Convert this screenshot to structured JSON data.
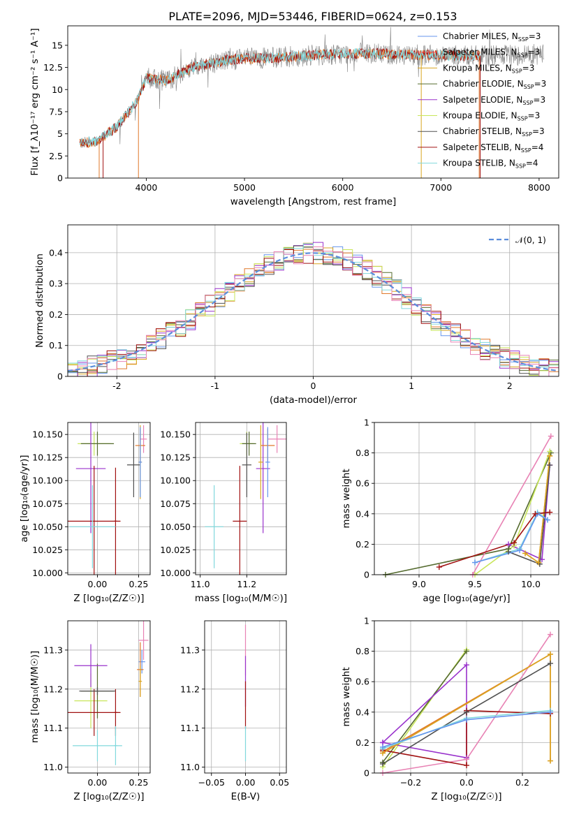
{
  "figure_title": "PLATE=2096, MJD=53446, FIBERID=0624, z=0.153",
  "colors": {
    "Chabrier MILES": "#6495ed",
    "Salpeter MILES": "#ff4c4c",
    "Kroupa MILES": "#daa520",
    "Chabrier ELODIE": "#556b2f",
    "Salpeter ELODIE": "#9932cc",
    "Kroupa ELODIE": "#c8e65a",
    "Chabrier STELIB": "#505050",
    "Salpeter STELIB": "#a01010",
    "Kroupa STELIB": "#80d8dc",
    "pink": "#e882b4",
    "orange": "#e0782a",
    "gray": "#808080",
    "gauss": "#5b8ddb"
  },
  "chart_data": [
    {
      "id": "spectrum",
      "type": "line",
      "title": "PLATE=2096, MJD=53446, FIBERID=0624, z=0.153",
      "xlabel": "wavelength [Angstrom, rest frame]",
      "ylabel": "Flux [f_λ10⁻¹⁷ erg cm⁻² s⁻¹ A⁻¹]",
      "xlim": [
        3200,
        8200
      ],
      "ylim": [
        0,
        17.2
      ],
      "xticks": [
        4000,
        5000,
        6000,
        7000,
        8000
      ],
      "yticks": [
        0.0,
        2.5,
        5.0,
        7.5,
        10.0,
        12.5,
        15.0
      ],
      "legend": "top-right",
      "legend_entries": [
        "Chabrier MILES, N_SSP=3",
        "Salpeter MILES, N_SSP=3",
        "Kroupa MILES, N_SSP=3",
        "Chabrier ELODIE, N_SSP=3",
        "Salpeter ELODIE, N_SSP=3",
        "Kroupa ELODIE, N_SSP=3",
        "Chabrier STELIB, N_SSP=3",
        "Salpeter STELIB, N_SSP=4",
        "Kroupa STELIB, N_SSP=4"
      ],
      "continuum": {
        "x": [
          3320,
          3500,
          3700,
          3900,
          4000,
          4200,
          4500,
          4800,
          5000,
          5300,
          5600,
          5900,
          6200,
          6500,
          6800,
          7000,
          7200,
          7500,
          7800,
          8000
        ],
        "y": [
          3.9,
          4.2,
          5.8,
          8.6,
          11.3,
          11.0,
          12.6,
          13.3,
          13.5,
          13.6,
          13.8,
          14.0,
          14.1,
          14.0,
          13.9,
          13.9,
          13.8,
          13.8,
          13.9,
          14.0
        ]
      }
    },
    {
      "id": "residuals",
      "type": "line",
      "xlabel": "(data-model)/error",
      "ylabel": "Normed distribution",
      "xlim": [
        -2.5,
        2.5
      ],
      "ylim": [
        0,
        0.49
      ],
      "xticks": [
        -2,
        -1,
        0,
        1,
        2
      ],
      "yticks": [
        0.0,
        0.1,
        0.2,
        0.3,
        0.4
      ],
      "legend": "top-right",
      "legend_entries": [
        "𝒩(0, 1)"
      ],
      "gaussian": {
        "mean": 0,
        "sigma": 1
      }
    },
    {
      "id": "age-vs-Z",
      "type": "scatter",
      "xlabel": "Z [log₁₀(Z/Z☉)]",
      "ylabel": "age  [log₁₀(age/yr)]",
      "xlim": [
        -0.18,
        0.32
      ],
      "ylim": [
        9.998,
        10.163
      ],
      "xticks": [
        0.0,
        0.25
      ],
      "xticklabels": [
        "0.00",
        "0.25"
      ],
      "yticks": [
        10.0,
        10.025,
        10.05,
        10.075,
        10.1,
        10.125,
        10.15
      ],
      "yticklabels": [
        "10.000",
        "10.025",
        "10.050",
        "10.075",
        "10.100",
        "10.125",
        "10.150"
      ],
      "errorbars": [
        {
          "x": -0.02,
          "xerr": 0.1,
          "y": 10.14,
          "yerr": 0.013,
          "color": "#c8e65a"
        },
        {
          "x": 0.0,
          "xerr": 0.1,
          "y": 10.14,
          "yerr": 0.013,
          "color": "#556b2f"
        },
        {
          "x": -0.04,
          "xerr": 0.09,
          "y": 10.113,
          "yerr": 0.07,
          "color": "#9932cc"
        },
        {
          "x": -0.02,
          "xerr": 0.16,
          "y": 10.056,
          "yerr": 0.06,
          "color": "#a01010"
        },
        {
          "x": 0.11,
          "xerr": 0.01,
          "y": 10.056,
          "yerr": 0.058,
          "color": "#a01010"
        },
        {
          "x": -0.03,
          "xerr": 0.14,
          "y": 10.05,
          "yerr": 0.045,
          "color": "#80d8dc"
        },
        {
          "x": 0.22,
          "xerr": 0.04,
          "y": 10.117,
          "yerr": 0.035,
          "color": "#505050"
        },
        {
          "x": 0.28,
          "xerr": 0.02,
          "y": 10.145,
          "yerr": 0.015,
          "color": "#e882b4"
        },
        {
          "x": 0.26,
          "xerr": 0.03,
          "y": 10.138,
          "yerr": 0.018,
          "color": "#e0782a"
        },
        {
          "x": 0.26,
          "xerr": 0.01,
          "y": 10.12,
          "yerr": 0.04,
          "color": "#daa520"
        },
        {
          "x": 0.26,
          "xerr": 0.01,
          "y": 10.12,
          "yerr": 0.038,
          "color": "#6495ed"
        }
      ]
    },
    {
      "id": "age-vs-mass",
      "type": "scatter",
      "xlabel": "mass [log₁₀(M/M☉)]",
      "xlim": [
        10.98,
        11.37
      ],
      "ylim": [
        9.998,
        10.163
      ],
      "xticks": [
        11.0,
        11.2
      ],
      "xticklabels": [
        "11.0",
        "11.2"
      ],
      "yticks": [
        10.0,
        10.025,
        10.05,
        10.075,
        10.1,
        10.125,
        10.15
      ],
      "yticklabels": [
        "10.000",
        "10.025",
        "10.050",
        "10.075",
        "10.100",
        "10.125",
        "10.150"
      ],
      "errorbars": [
        {
          "x": 11.2,
          "xerr": 0.03,
          "y": 10.14,
          "yerr": 0.013,
          "color": "#c8e65a"
        },
        {
          "x": 11.21,
          "xerr": 0.03,
          "y": 10.14,
          "yerr": 0.013,
          "color": "#556b2f"
        },
        {
          "x": 11.27,
          "xerr": 0.03,
          "y": 10.113,
          "yerr": 0.07,
          "color": "#9932cc"
        },
        {
          "x": 11.17,
          "xerr": 0.03,
          "y": 10.056,
          "yerr": 0.06,
          "color": "#a01010"
        },
        {
          "x": 11.06,
          "xerr": 0.04,
          "y": 10.05,
          "yerr": 0.045,
          "color": "#80d8dc"
        },
        {
          "x": 11.2,
          "xerr": 0.02,
          "y": 10.117,
          "yerr": 0.035,
          "color": "#505050"
        },
        {
          "x": 11.33,
          "xerr": 0.04,
          "y": 10.145,
          "yerr": 0.015,
          "color": "#e882b4"
        },
        {
          "x": 11.29,
          "xerr": 0.03,
          "y": 10.138,
          "yerr": 0.018,
          "color": "#e0782a"
        },
        {
          "x": 11.26,
          "xerr": 0.01,
          "y": 10.12,
          "yerr": 0.04,
          "color": "#daa520"
        },
        {
          "x": 11.29,
          "xerr": 0.01,
          "y": 10.12,
          "yerr": 0.038,
          "color": "#6495ed"
        }
      ]
    },
    {
      "id": "weight-vs-age",
      "type": "line",
      "xlabel": "age  [log₁₀(age/yr)]",
      "ylabel": "mass weight",
      "xlim": [
        8.6,
        10.25
      ],
      "ylim": [
        0,
        1.0
      ],
      "xticks": [
        9.0,
        9.5,
        10.0
      ],
      "xticklabels": [
        "9.0",
        "9.5",
        "10.0"
      ],
      "yticks": [
        0.0,
        0.2,
        0.4,
        0.6,
        0.8,
        1.0
      ],
      "series": [
        {
          "color": "#556b2f",
          "x": [
            8.7,
            9.8,
            10.18
          ],
          "y": [
            0.0,
            0.17,
            0.8
          ]
        },
        {
          "color": "#c8e65a",
          "x": [
            9.5,
            9.85,
            10.17
          ],
          "y": [
            0.0,
            0.19,
            0.81
          ]
        },
        {
          "color": "#e882b4",
          "x": [
            9.48,
            10.18
          ],
          "y": [
            0.0,
            0.91
          ]
        },
        {
          "color": "#9932cc",
          "x": [
            9.8,
            10.1,
            10.17
          ],
          "y": [
            0.2,
            0.1,
            0.72
          ]
        },
        {
          "color": "#505050",
          "x": [
            9.8,
            10.08,
            10.17
          ],
          "y": [
            0.15,
            0.07,
            0.72
          ]
        },
        {
          "color": "#e0782a",
          "x": [
            9.95,
            10.07,
            10.17
          ],
          "y": [
            0.14,
            0.08,
            0.78
          ]
        },
        {
          "color": "#daa520",
          "x": [
            9.95,
            10.07,
            10.17
          ],
          "y": [
            0.14,
            0.08,
            0.78
          ]
        },
        {
          "color": "#80d8dc",
          "x": [
            9.5,
            9.9,
            10.06,
            10.15
          ],
          "y": [
            0.08,
            0.17,
            0.41,
            0.36
          ]
        },
        {
          "color": "#6495ed",
          "x": [
            9.5,
            9.9,
            10.06,
            10.15
          ],
          "y": [
            0.08,
            0.16,
            0.4,
            0.36
          ]
        },
        {
          "color": "#a01010",
          "x": [
            9.18,
            9.85,
            10.04,
            10.17
          ],
          "y": [
            0.05,
            0.21,
            0.4,
            0.41
          ]
        }
      ]
    },
    {
      "id": "mass-vs-Z",
      "type": "scatter",
      "xlabel": "Z [log₁₀(Z/Z☉)]",
      "ylabel": "mass [log₁₀(M/M☉)]",
      "xlim": [
        -0.18,
        0.32
      ],
      "ylim": [
        10.985,
        11.375
      ],
      "xticks": [
        0.0,
        0.25
      ],
      "xticklabels": [
        "0.00",
        "0.25"
      ],
      "yticks": [
        11.0,
        11.1,
        11.2,
        11.3
      ],
      "yticklabels": [
        "11.0",
        "11.1",
        "11.2",
        "11.3"
      ],
      "errorbars": [
        {
          "x": -0.04,
          "xerr": 0.1,
          "y": 11.17,
          "yerr": 0.07,
          "color": "#c8e65a"
        },
        {
          "x": 0.0,
          "xerr": 0.1,
          "y": 11.195,
          "yerr": 0.07,
          "color": "#556b2f"
        },
        {
          "x": -0.04,
          "xerr": 0.1,
          "y": 11.26,
          "yerr": 0.055,
          "color": "#9932cc"
        },
        {
          "x": -0.02,
          "xerr": 0.16,
          "y": 11.14,
          "yerr": 0.06,
          "color": "#a01010"
        },
        {
          "x": 0.11,
          "xerr": 0.01,
          "y": 11.14,
          "yerr": 0.06,
          "color": "#a01010"
        },
        {
          "x": 0.0,
          "xerr": 0.15,
          "y": 11.055,
          "yerr": 0.04,
          "color": "#80d8dc"
        },
        {
          "x": 0.11,
          "xerr": 0.01,
          "y": 11.055,
          "yerr": 0.05,
          "color": "#80d8dc"
        },
        {
          "x": 0.0,
          "xerr": 0.11,
          "y": 11.195,
          "yerr": 0.01,
          "color": "#505050"
        },
        {
          "x": 0.28,
          "xerr": 0.03,
          "y": 11.325,
          "yerr": 0.05,
          "color": "#e882b4"
        },
        {
          "x": 0.27,
          "xerr": 0.02,
          "y": 11.27,
          "yerr": 0.03,
          "color": "#6495ed"
        },
        {
          "x": 0.26,
          "xerr": 0.02,
          "y": 11.25,
          "yerr": 0.07,
          "color": "#e0782a"
        },
        {
          "x": 0.26,
          "xerr": 0.01,
          "y": 11.22,
          "yerr": 0.04,
          "color": "#daa520"
        }
      ]
    },
    {
      "id": "mass-vs-EBV",
      "type": "scatter",
      "xlabel": "E(B-V)",
      "xlim": [
        -0.06,
        0.06
      ],
      "ylim": [
        10.985,
        11.375
      ],
      "xticks": [
        -0.05,
        0.0,
        0.05
      ],
      "xticklabels": [
        "−0.05",
        "0.00",
        "0.05"
      ],
      "yticks": [
        11.0,
        11.1,
        11.2,
        11.3
      ],
      "yticklabels": [
        "11.0",
        "11.1",
        "11.2",
        "11.3"
      ],
      "errorbars": [
        {
          "x": 0.0,
          "xerr": 0,
          "y": 11.3,
          "yerr": 0.065,
          "color": "#e882b4"
        },
        {
          "x": 0.0,
          "xerr": 0,
          "y": 11.22,
          "yerr": 0.065,
          "color": "#9932cc"
        },
        {
          "x": 0.0,
          "xerr": 0,
          "y": 11.16,
          "yerr": 0.06,
          "color": "#a01010"
        },
        {
          "x": 0.0,
          "xerr": 0,
          "y": 11.06,
          "yerr": 0.045,
          "color": "#80d8dc"
        }
      ]
    },
    {
      "id": "weight-vs-Z",
      "type": "line",
      "xlabel": "Z [log₁₀(Z/Z☉)]",
      "ylabel": "mass weight",
      "xlim": [
        -0.33,
        0.33
      ],
      "ylim": [
        0,
        1.0
      ],
      "xticks": [
        -0.2,
        0.0,
        0.2
      ],
      "xticklabels": [
        "−0.2",
        "0.0",
        "0.2"
      ],
      "yticks": [
        0.0,
        0.2,
        0.4,
        0.6,
        0.8,
        1.0
      ],
      "series": [
        {
          "color": "#c8e65a",
          "x": [
            -0.3,
            0.0
          ],
          "y": [
            0.04,
            0.81
          ]
        },
        {
          "color": "#556b2f",
          "x": [
            -0.3,
            0.0
          ],
          "y": [
            0.07,
            0.8
          ]
        },
        {
          "color": "#9932cc",
          "x": [
            -0.3,
            0.0,
            0.0,
            -0.3
          ],
          "y": [
            0.2,
            0.71,
            0.1,
            0.2
          ]
        },
        {
          "color": "#e882b4",
          "x": [
            -0.3,
            0.0,
            0.3
          ],
          "y": [
            0.0,
            0.09,
            0.91
          ]
        },
        {
          "color": "#a01010",
          "x": [
            -0.3,
            0.0,
            0.0,
            0.3
          ],
          "y": [
            0.15,
            0.05,
            0.41,
            0.39
          ]
        },
        {
          "color": "#505050",
          "x": [
            -0.3,
            0.0,
            0.3
          ],
          "y": [
            0.06,
            0.4,
            0.72
          ]
        },
        {
          "color": "#e0782a",
          "x": [
            -0.3,
            0.3,
            0.3
          ],
          "y": [
            0.14,
            0.78,
            0.08
          ]
        },
        {
          "color": "#daa520",
          "x": [
            -0.3,
            0.3,
            0.3
          ],
          "y": [
            0.13,
            0.78,
            0.08
          ]
        },
        {
          "color": "#80d8dc",
          "x": [
            -0.3,
            0.0,
            0.3
          ],
          "y": [
            0.16,
            0.36,
            0.41
          ]
        },
        {
          "color": "#6495ed",
          "x": [
            -0.3,
            0.0,
            0.3
          ],
          "y": [
            0.17,
            0.35,
            0.4
          ]
        }
      ]
    }
  ]
}
